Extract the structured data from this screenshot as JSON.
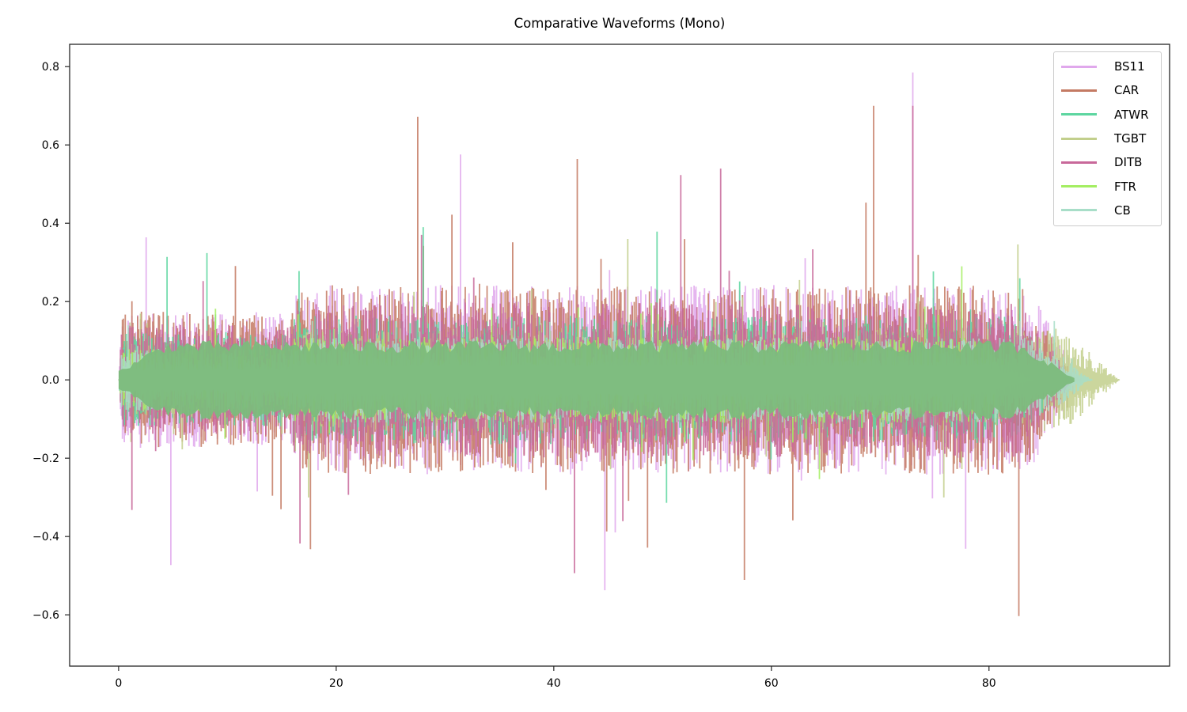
{
  "chart_data": {
    "type": "line",
    "title": "Comparative Waveforms (Mono)",
    "xlabel": "",
    "ylabel": "",
    "xlim": [
      -4.5,
      96.6
    ],
    "ylim": [
      -0.731,
      0.857
    ],
    "x_ticks": [
      0,
      20,
      40,
      60,
      80
    ],
    "x_tick_labels": [
      "0",
      "20",
      "40",
      "60",
      "80"
    ],
    "y_ticks": [
      0.8,
      0.6,
      0.4,
      0.2,
      0.0,
      -0.2,
      -0.4,
      -0.6
    ],
    "y_tick_labels": [
      "0.8",
      "0.6",
      "0.4",
      "0.2",
      "0.0",
      "−0.2",
      "−0.4",
      "−0.6"
    ],
    "grid": false,
    "legend_position": "upper right",
    "series": [
      {
        "name": "BS11",
        "color": "#e0a8ec",
        "duration": 88.5,
        "typical_amplitude": 0.22,
        "max_peak": 0.785,
        "min_peak": -0.61,
        "peak_x_max": 73.0
      },
      {
        "name": "CAR",
        "color": "#c47a63",
        "duration": 88.0,
        "typical_amplitude": 0.22,
        "max_peak": 0.7,
        "min_peak": -0.66,
        "peak_x_max": 69.4
      },
      {
        "name": "ATWR",
        "color": "#5dd6a0",
        "duration": 87.5,
        "typical_amplitude": 0.15,
        "max_peak": 0.39,
        "min_peak": -0.43,
        "peak_x_max": 28.0
      },
      {
        "name": "TGBT",
        "color": "#c2cf8c",
        "duration": 92.0,
        "typical_amplitude": 0.12,
        "max_peak": 0.36,
        "min_peak": -0.3,
        "peak_x_max": 46.8
      },
      {
        "name": "DITB",
        "color": "#c8689a",
        "duration": 87.8,
        "typical_amplitude": 0.18,
        "max_peak": 0.7,
        "min_peak": -0.56,
        "peak_x_max": 73.0
      },
      {
        "name": "FTR",
        "color": "#a4ee62",
        "duration": 84.0,
        "typical_amplitude": 0.1,
        "max_peak": 0.29,
        "min_peak": -0.3,
        "peak_x_max": 77.5
      },
      {
        "name": "CB",
        "color": "#a8dec8",
        "duration": 89.5,
        "typical_amplitude": 0.1,
        "max_peak": 0.15,
        "min_peak": -0.1,
        "peak_x_max": 86.0
      }
    ]
  },
  "legend": {
    "items": [
      {
        "label": "BS11",
        "color": "#e0a8ec"
      },
      {
        "label": "CAR",
        "color": "#c47a63"
      },
      {
        "label": "ATWR",
        "color": "#5dd6a0"
      },
      {
        "label": "TGBT",
        "color": "#c2cf8c"
      },
      {
        "label": "DITB",
        "color": "#c8689a"
      },
      {
        "label": "FTR",
        "color": "#a4ee62"
      },
      {
        "label": "CB",
        "color": "#a8dec8"
      }
    ]
  },
  "overlap_fill_color": "#7cbb7c"
}
